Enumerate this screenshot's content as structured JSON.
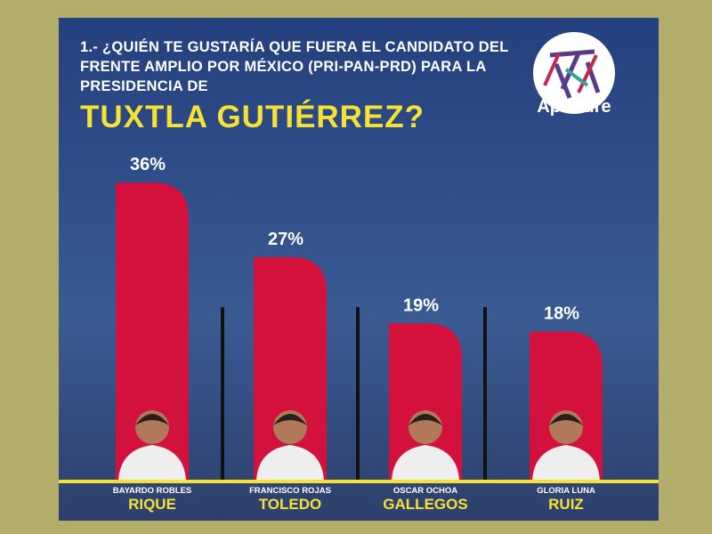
{
  "chart_data": {
    "type": "bar",
    "title": "1.- ¿QUIÉN TE GUSTARÍA QUE FUERA EL CANDIDATO DEL FRENTE AMPLIO POR MÉXICO (PRI-PAN-PRD) PARA LA PRESIDENCIA DE",
    "subtitle": "TUXTLA GUTIÉRREZ?",
    "candidates": [
      {
        "given": "BAYARDO ROBLES",
        "surname": "RIQUE"
      },
      {
        "given": "FRANCISCO ROJAS",
        "surname": "TOLEDO"
      },
      {
        "given": "OSCAR OCHOA",
        "surname": "GALLEGOS"
      },
      {
        "given": "GLORIA LUNA",
        "surname": "RUIZ"
      }
    ],
    "values": [
      36,
      27,
      19,
      18
    ],
    "value_labels": [
      "36%",
      "27%",
      "19%",
      "18%"
    ],
    "color": "#d3113c"
  },
  "logo": {
    "brand": "Aperture"
  }
}
